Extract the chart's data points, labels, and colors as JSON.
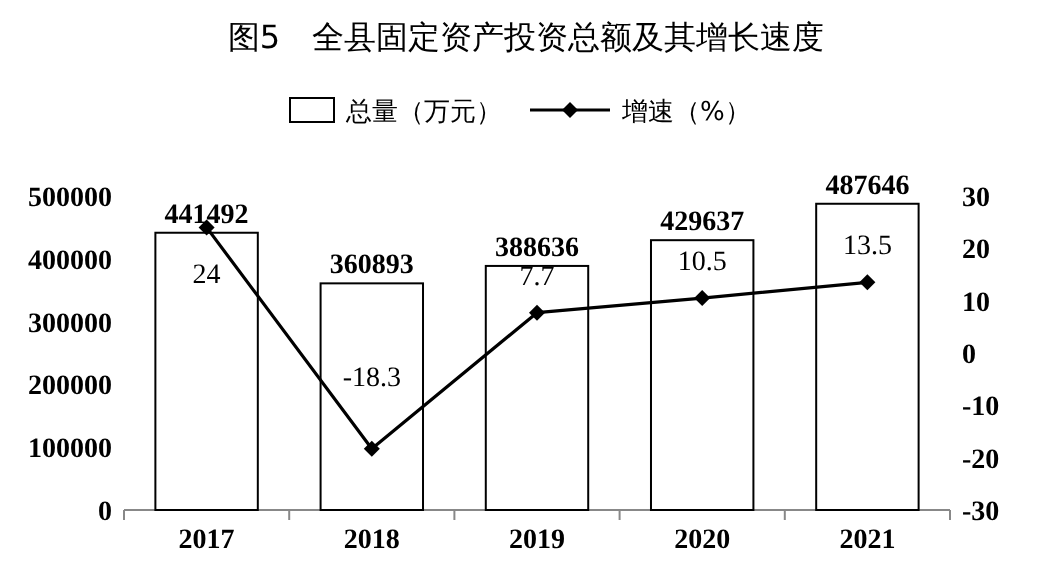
{
  "chart_data": {
    "type": "bar",
    "title": "图5　全县固定资产投资总额及其增长速度",
    "categories": [
      "2017",
      "2018",
      "2019",
      "2020",
      "2021"
    ],
    "series": [
      {
        "name": "总量（万元）",
        "color": "#ffffff",
        "values": [
          441492,
          360893,
          388636,
          429637,
          487646
        ]
      },
      {
        "name": "增速（%）",
        "type": "line",
        "axis": "y2",
        "color": "#000000",
        "marker": "diamond",
        "values": [
          24,
          -18.3,
          7.7,
          10.5,
          13.5
        ]
      }
    ],
    "ylim": [
      0,
      500000
    ],
    "yticks": [
      0,
      100000,
      200000,
      300000,
      400000,
      500000
    ],
    "y2lim": [
      -30,
      30
    ],
    "y2ticks": [
      -30,
      -20,
      -10,
      0,
      10,
      20,
      30
    ],
    "data_labels": true,
    "legend": "top",
    "grid": false
  }
}
